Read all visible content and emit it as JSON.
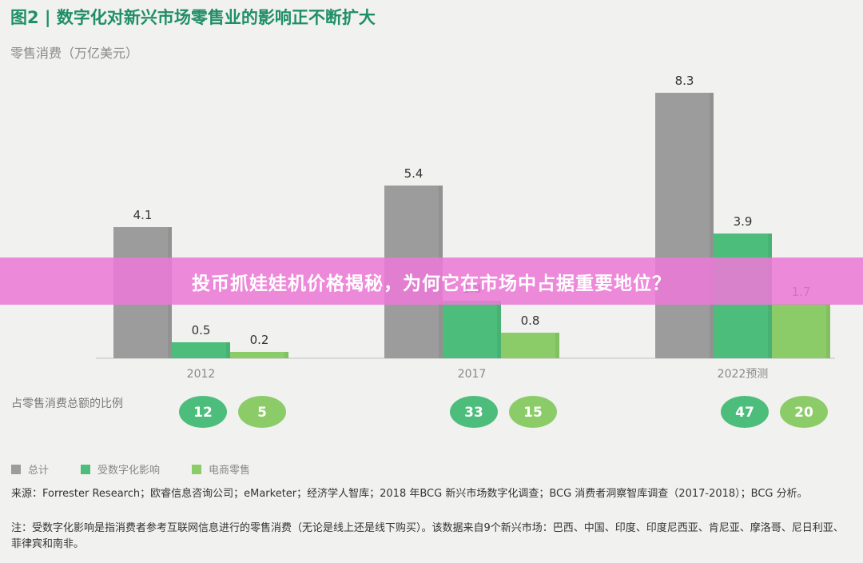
{
  "figure_title": "图2 | 数字化对新兴市场零售业的影响正不断扩大",
  "y_unit_label": "零售消费（万亿美元）",
  "share_row_title": "占零售消费总额的比例",
  "legend": [
    {
      "label": "总计",
      "color": "#9c9c9c"
    },
    {
      "label": "受数字化影响",
      "color": "#4dbd7c"
    },
    {
      "label": "电商零售",
      "color": "#8ccc68"
    }
  ],
  "source_text": "来源：Forrester Research；欧睿信息咨询公司；eMarketer；经济学人智库；2018 年BCG 新兴市场数字化调查；BCG 消费者洞察智库调查（2017-2018）；BCG 分析。",
  "note_text": "注：受数字化影响是指消费者参考互联网信息进行的零售消费（无论是线上还是线下购买）。该数据来自9个新兴市场：巴西、中国、印度、印度尼西亚、肯尼亚、摩洛哥、尼日利亚、菲律宾和南非。",
  "banner_text": "投币抓娃娃机价格揭秘，为何它在市场中占据重要地位？",
  "chart_data": {
    "type": "bar",
    "title": "图2 | 数字化对新兴市场零售业的影响正不断扩大",
    "ylabel": "零售消费（万亿美元）",
    "xlabel": "",
    "categories": [
      "2012",
      "2017",
      "2022预测"
    ],
    "series": [
      {
        "name": "总计",
        "values": [
          4.1,
          5.4,
          8.3
        ],
        "color": "#9c9c9c"
      },
      {
        "name": "受数字化影响",
        "values": [
          0.5,
          1.8,
          3.9
        ],
        "color": "#4dbd7c"
      },
      {
        "name": "电商零售",
        "values": [
          0.2,
          0.8,
          1.7
        ],
        "color": "#8ccc68"
      }
    ],
    "value_labels": [
      [
        "4.1",
        "0.5",
        "0.2"
      ],
      [
        "5.4",
        "1.8",
        "0.8"
      ],
      [
        "8.3",
        "3.9",
        "1.7"
      ]
    ],
    "share_of_total": {
      "受数字化影响": [
        12,
        33,
        47
      ],
      "电商零售": [
        5,
        15,
        20
      ]
    },
    "ylim": [
      0,
      8.3
    ],
    "grid": false,
    "legend_position": "bottom-left"
  }
}
